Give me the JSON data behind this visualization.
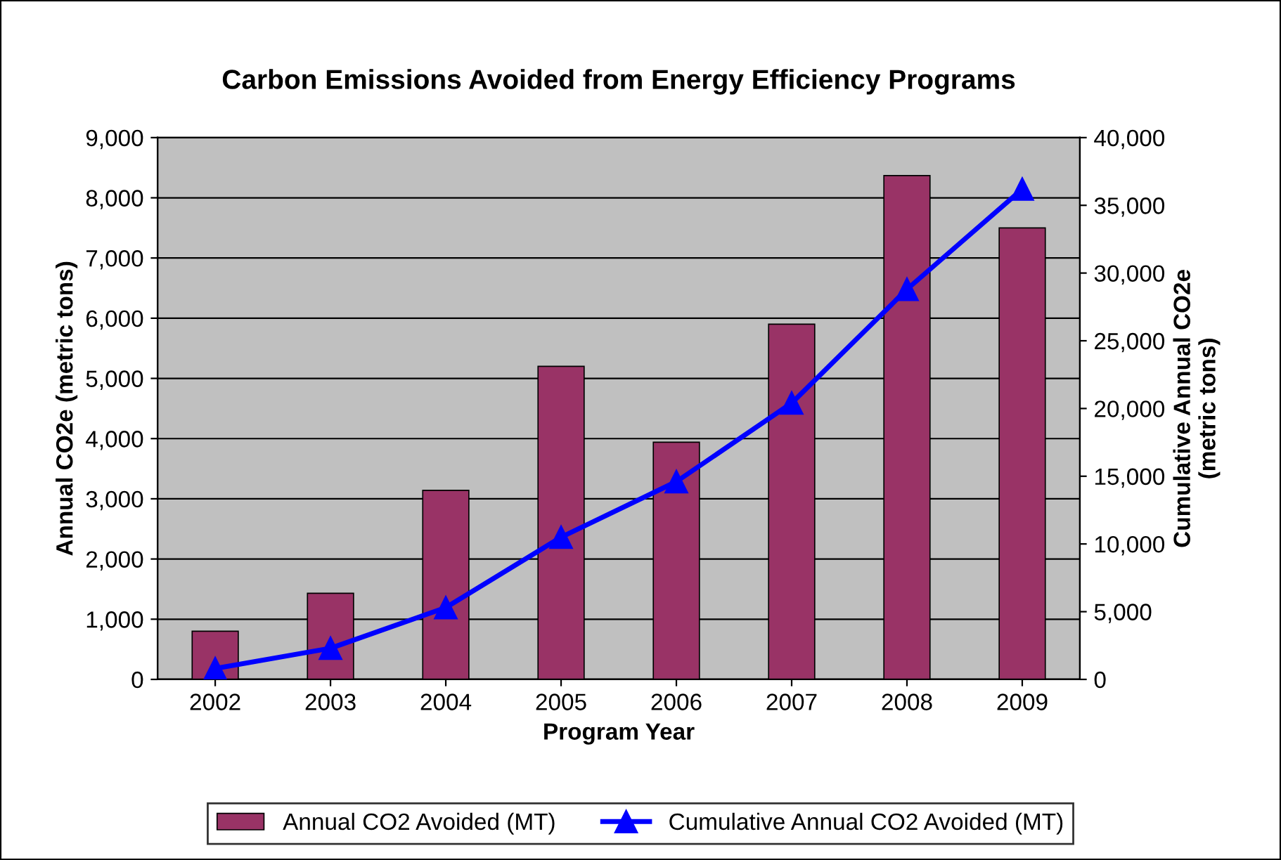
{
  "chart_data": {
    "type": "bar",
    "title": "Carbon Emissions Avoided from Energy Efficiency Programs",
    "xlabel": "Program Year",
    "ylabel": "Annual CO2e (metric tons)",
    "y2label": "Cumulative Annual CO2e\n(metric tons)",
    "categories": [
      "2002",
      "2003",
      "2004",
      "2005",
      "2006",
      "2007",
      "2008",
      "2009"
    ],
    "series": [
      {
        "name": "Annual CO2 Avoided (MT)",
        "color": "#993366",
        "values": [
          800,
          1430,
          3140,
          5200,
          3940,
          5900,
          8370,
          7500
        ]
      },
      {
        "name": "Cumulative Annual CO2 Avoided (MT)",
        "type": "line",
        "axis": "y2",
        "color": "#0000ff",
        "marker": "triangle",
        "line_style": "solid",
        "values": [
          800,
          2300,
          5300,
          10500,
          14600,
          20400,
          28800,
          36200
        ]
      }
    ],
    "ylim": [
      0,
      9000
    ],
    "yticks": [
      {
        "value": 0,
        "label": "0"
      },
      {
        "value": 1000,
        "label": "1,000"
      },
      {
        "value": 2000,
        "label": "2,000"
      },
      {
        "value": 3000,
        "label": "3,000"
      },
      {
        "value": 4000,
        "label": "4,000"
      },
      {
        "value": 5000,
        "label": "5,000"
      },
      {
        "value": 6000,
        "label": "6,000"
      },
      {
        "value": 7000,
        "label": "7,000"
      },
      {
        "value": 8000,
        "label": "8,000"
      },
      {
        "value": 9000,
        "label": "9,000"
      }
    ],
    "y2lim": [
      0,
      40000
    ],
    "y2ticks": [
      {
        "value": 0,
        "label": "0"
      },
      {
        "value": 5000,
        "label": "5,000"
      },
      {
        "value": 10000,
        "label": "10,000"
      },
      {
        "value": 15000,
        "label": "15,000"
      },
      {
        "value": 20000,
        "label": "20,000"
      },
      {
        "value": 25000,
        "label": "25,000"
      },
      {
        "value": 30000,
        "label": "30,000"
      },
      {
        "value": 35000,
        "label": "35,000"
      },
      {
        "value": 40000,
        "label": "40,000"
      }
    ],
    "grid": "y",
    "legend": "bottom"
  }
}
